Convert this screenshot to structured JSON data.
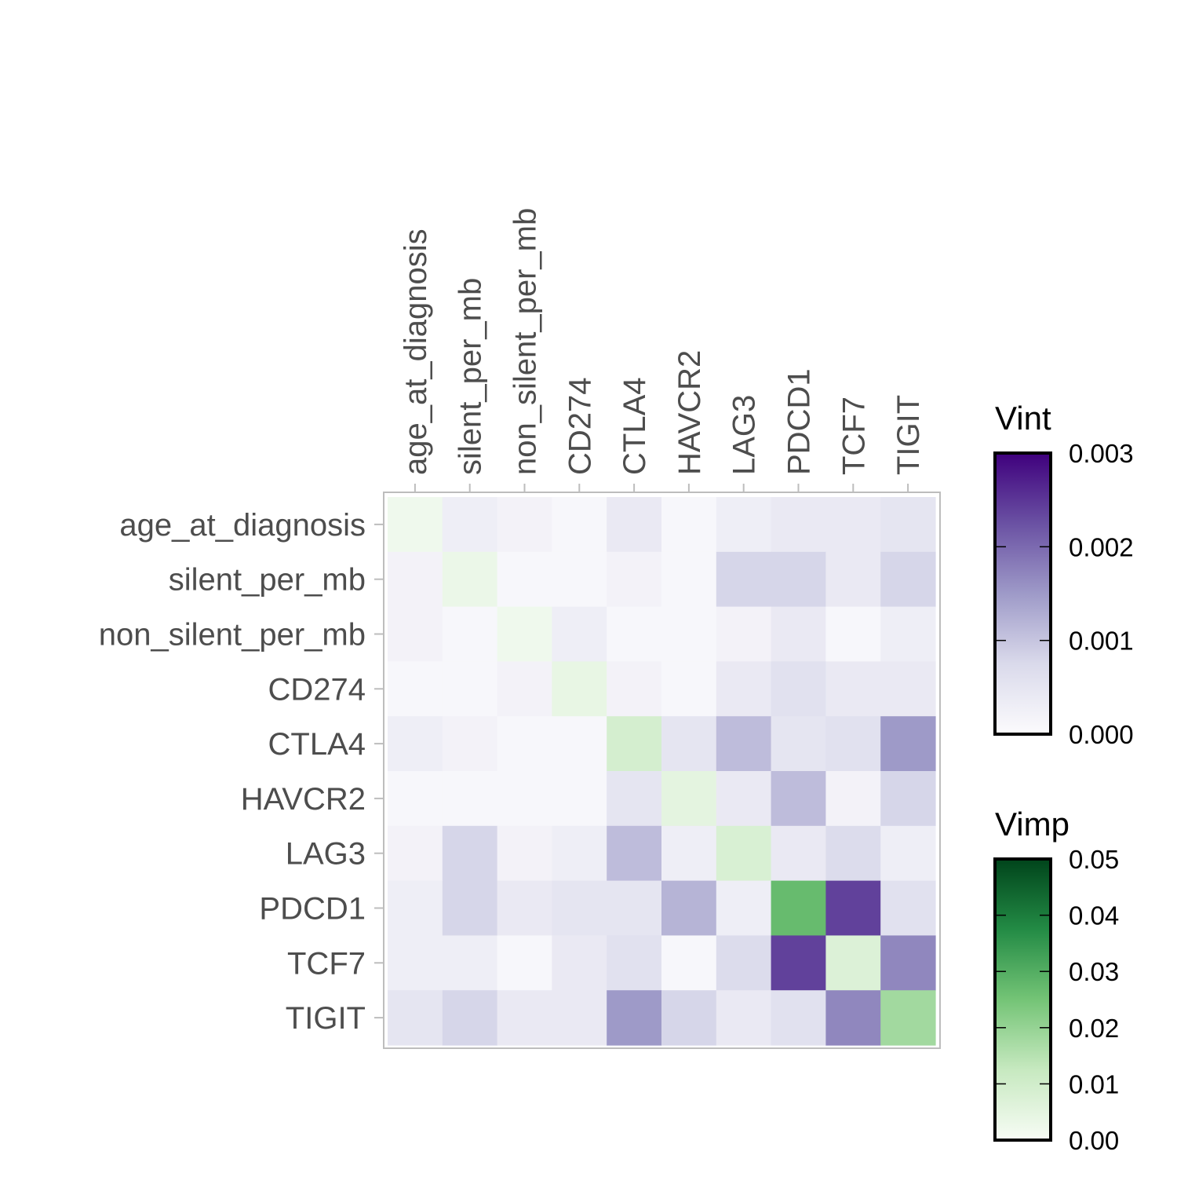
{
  "chart_data": {
    "type": "heatmap",
    "title": "",
    "xlabel": "",
    "ylabel": "",
    "variables": [
      "age_at_diagnosis",
      "silent_per_mb",
      "non_silent_per_mb",
      "CD274",
      "CTLA4",
      "HAVCR2",
      "LAG3",
      "PDCD1",
      "TCF7",
      "TIGIT"
    ],
    "cells": [
      [
        "vimp",
        0.002
      ],
      [
        "vint",
        0.0003
      ],
      [
        "vint",
        0.0002
      ],
      [
        "vint",
        0.0001
      ],
      [
        "vint",
        0.0004
      ],
      [
        "vint",
        0.0001
      ],
      [
        "vint",
        0.0003
      ],
      [
        "vint",
        0.0004
      ],
      [
        "vint",
        0.0004
      ],
      [
        "vint",
        0.0005
      ],
      [
        "vint",
        0.0002
      ],
      [
        "vimp",
        0.003
      ],
      [
        "vint",
        0.0001
      ],
      [
        "vint",
        0.0001
      ],
      [
        "vint",
        0.0002
      ],
      [
        "vint",
        0.0001
      ],
      [
        "vint",
        0.0008
      ],
      [
        "vint",
        0.0008
      ],
      [
        "vint",
        0.0004
      ],
      [
        "vint",
        0.0008
      ],
      [
        "vint",
        0.0002
      ],
      [
        "vint",
        0.0001
      ],
      [
        "vimp",
        0.002
      ],
      [
        "vint",
        0.0003
      ],
      [
        "vint",
        0.0001
      ],
      [
        "vint",
        0.0001
      ],
      [
        "vint",
        0.0002
      ],
      [
        "vint",
        0.0004
      ],
      [
        "vint",
        0.0001
      ],
      [
        "vint",
        0.0003
      ],
      [
        "vint",
        0.0001
      ],
      [
        "vint",
        0.0001
      ],
      [
        "vint",
        0.0002
      ],
      [
        "vimp",
        0.004
      ],
      [
        "vint",
        0.0002
      ],
      [
        "vint",
        0.0001
      ],
      [
        "vint",
        0.0004
      ],
      [
        "vint",
        0.0006
      ],
      [
        "vint",
        0.0004
      ],
      [
        "vint",
        0.0004
      ],
      [
        "vint",
        0.0003
      ],
      [
        "vint",
        0.0002
      ],
      [
        "vint",
        0.0001
      ],
      [
        "vint",
        0.0001
      ],
      [
        "vimp",
        0.009
      ],
      [
        "vint",
        0.0005
      ],
      [
        "vint",
        0.0011
      ],
      [
        "vint",
        0.0005
      ],
      [
        "vint",
        0.0006
      ],
      [
        "vint",
        0.0015
      ],
      [
        "vint",
        0.0001
      ],
      [
        "vint",
        0.0001
      ],
      [
        "vint",
        0.0001
      ],
      [
        "vint",
        0.0001
      ],
      [
        "vint",
        0.0005
      ],
      [
        "vimp",
        0.005
      ],
      [
        "vint",
        0.0004
      ],
      [
        "vint",
        0.0011
      ],
      [
        "vint",
        0.0002
      ],
      [
        "vint",
        0.0008
      ],
      [
        "vint",
        0.0002
      ],
      [
        "vint",
        0.0008
      ],
      [
        "vint",
        0.0002
      ],
      [
        "vint",
        0.0003
      ],
      [
        "vint",
        0.0011
      ],
      [
        "vint",
        0.0003
      ],
      [
        "vimp",
        0.008
      ],
      [
        "vint",
        0.0004
      ],
      [
        "vint",
        0.0007
      ],
      [
        "vint",
        0.0003
      ],
      [
        "vint",
        0.0003
      ],
      [
        "vint",
        0.0008
      ],
      [
        "vint",
        0.0004
      ],
      [
        "vint",
        0.0005
      ],
      [
        "vint",
        0.0005
      ],
      [
        "vint",
        0.0012
      ],
      [
        "vint",
        0.0003
      ],
      [
        "vimp",
        0.027
      ],
      [
        "vint",
        0.0024
      ],
      [
        "vint",
        0.0006
      ],
      [
        "vint",
        0.0003
      ],
      [
        "vint",
        0.0003
      ],
      [
        "vint",
        0.0001
      ],
      [
        "vint",
        0.0004
      ],
      [
        "vint",
        0.0006
      ],
      [
        "vint",
        0.0001
      ],
      [
        "vint",
        0.0007
      ],
      [
        "vint",
        0.0024
      ],
      [
        "vimp",
        0.007
      ],
      [
        "vint",
        0.0017
      ],
      [
        "vint",
        0.0005
      ],
      [
        "vint",
        0.0008
      ],
      [
        "vint",
        0.0004
      ],
      [
        "vint",
        0.0004
      ],
      [
        "vint",
        0.0015
      ],
      [
        "vint",
        0.0008
      ],
      [
        "vint",
        0.0004
      ],
      [
        "vint",
        0.0006
      ],
      [
        "vint",
        0.0017
      ],
      [
        "vimp",
        0.018
      ]
    ],
    "legends": [
      {
        "title": "Vint",
        "min": 0,
        "max": 0.003,
        "ticks": [
          "0.000",
          "0.001",
          "0.002",
          "0.003"
        ],
        "colors": [
          "#fcfbfd",
          "#dadaeb",
          "#9e9ac8",
          "#6a51a3",
          "#3f007d"
        ]
      },
      {
        "title": "Vimp",
        "min": 0,
        "max": 0.05,
        "ticks": [
          "0.00",
          "0.01",
          "0.02",
          "0.03",
          "0.04",
          "0.05"
        ],
        "colors": [
          "#f7fcf5",
          "#c7e9c0",
          "#74c476",
          "#238b45",
          "#00441b"
        ]
      }
    ]
  }
}
